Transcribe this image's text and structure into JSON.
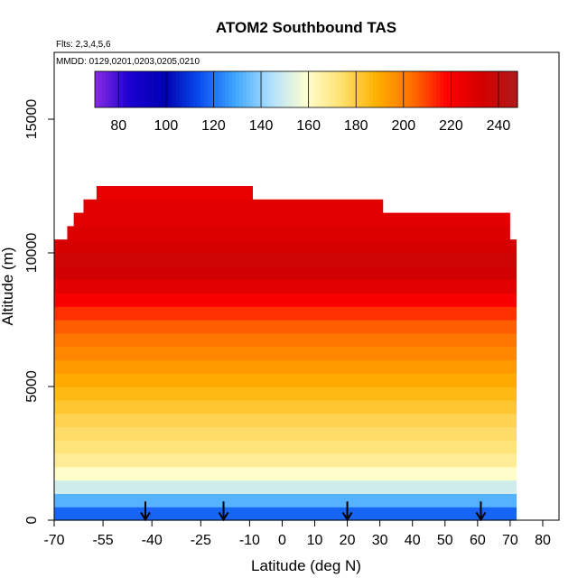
{
  "chart_data": {
    "type": "heatmap",
    "title": "ATOM2 Southbound TAS",
    "subtitle_flights": "Flts: 2,3,4,5,6",
    "subtitle_dates": "MMDD: 0129,0201,0203,0205,0210",
    "xlabel": "Latitude (deg N)",
    "ylabel": "Altitude (m)",
    "xlim": [
      -70,
      85
    ],
    "ylim": [
      0,
      17500
    ],
    "x_tick_labels": [
      "-70",
      "-55",
      "-40",
      "-25",
      "-10",
      "0",
      "10",
      "20",
      "30",
      "40",
      "50",
      "60",
      "70",
      "80"
    ],
    "x_tick_values": [
      -70,
      -55,
      -40,
      -25,
      -10,
      0,
      10,
      20,
      30,
      40,
      50,
      60,
      70,
      80
    ],
    "y_tick_labels": [
      "0",
      "5000",
      "10000",
      "15000"
    ],
    "y_tick_values": [
      0,
      5000,
      10000,
      15000
    ],
    "colorbar": {
      "min": 70,
      "max": 248,
      "tick_labels": [
        "80",
        "100",
        "120",
        "140",
        "160",
        "180",
        "200",
        "220",
        "240"
      ],
      "tick_values": [
        80,
        100,
        120,
        140,
        160,
        180,
        200,
        220,
        240
      ],
      "colors": [
        "#8a2be2",
        "#1a00d0",
        "#0000b0",
        "#0a50f0",
        "#40a8ff",
        "#b0e0ff",
        "#ffffd0",
        "#ffe070",
        "#ffb000",
        "#ff7000",
        "#ff0000",
        "#d40000",
        "#b01a1a"
      ]
    },
    "rows": [
      {
        "alt": 250,
        "x_start": -70,
        "x_end": 72,
        "tas": 118
      },
      {
        "alt": 750,
        "x_start": -70,
        "x_end": 72,
        "tas": 132
      },
      {
        "alt": 1250,
        "x_start": -70,
        "x_end": 72,
        "tas": 150
      },
      {
        "alt": 1750,
        "x_start": -70,
        "x_end": 72,
        "tas": 160
      },
      {
        "alt": 2250,
        "x_start": -70,
        "x_end": 72,
        "tas": 168
      },
      {
        "alt": 2750,
        "x_start": -70,
        "x_end": 72,
        "tas": 172
      },
      {
        "alt": 3250,
        "x_start": -70,
        "x_end": 72,
        "tas": 175
      },
      {
        "alt": 3750,
        "x_start": -70,
        "x_end": 72,
        "tas": 178
      },
      {
        "alt": 4250,
        "x_start": -70,
        "x_end": 72,
        "tas": 182
      },
      {
        "alt": 4750,
        "x_start": -70,
        "x_end": 72,
        "tas": 186
      },
      {
        "alt": 5250,
        "x_start": -70,
        "x_end": 72,
        "tas": 190
      },
      {
        "alt": 5750,
        "x_start": -70,
        "x_end": 72,
        "tas": 194
      },
      {
        "alt": 6250,
        "x_start": -70,
        "x_end": 72,
        "tas": 198
      },
      {
        "alt": 6750,
        "x_start": -70,
        "x_end": 72,
        "tas": 202
      },
      {
        "alt": 7250,
        "x_start": -70,
        "x_end": 72,
        "tas": 206
      },
      {
        "alt": 7750,
        "x_start": -70,
        "x_end": 72,
        "tas": 212
      },
      {
        "alt": 8250,
        "x_start": -70,
        "x_end": 72,
        "tas": 220
      },
      {
        "alt": 8750,
        "x_start": -70,
        "x_end": 72,
        "tas": 228
      },
      {
        "alt": 9250,
        "x_start": -70,
        "x_end": 72,
        "tas": 234
      },
      {
        "alt": 9750,
        "x_start": -70,
        "x_end": 72,
        "tas": 236
      },
      {
        "alt": 10250,
        "x_start": -70,
        "x_end": 72,
        "tas": 232
      },
      {
        "alt": 10750,
        "x_start": -66,
        "x_end": 70,
        "tas": 230
      },
      {
        "alt": 11250,
        "x_start": -64,
        "x_end": 70,
        "tas": 228
      },
      {
        "alt": 11750,
        "x_start": -61,
        "x_end": 31,
        "tas": 228
      },
      {
        "alt": 12250,
        "x_start": -57,
        "x_end": -9,
        "tas": 226
      }
    ],
    "arrows_latitude": [
      -42,
      -18,
      20,
      61
    ]
  }
}
